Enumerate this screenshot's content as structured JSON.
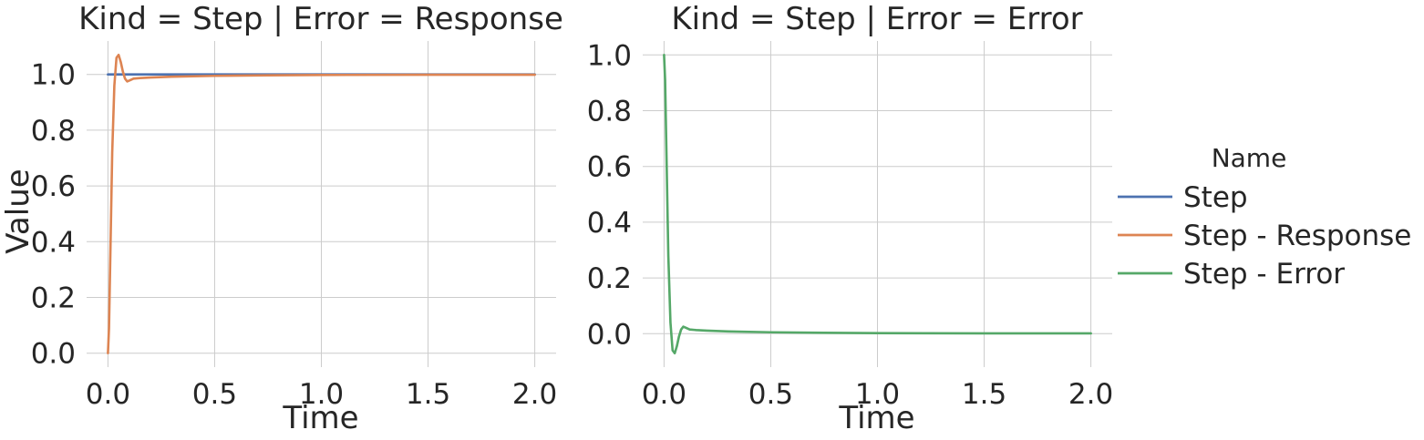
{
  "chart_data": [
    {
      "type": "line",
      "title": "Kind = Step | Error = Response",
      "xlabel": "Time",
      "ylabel": "Value",
      "xlim": [
        -0.1,
        2.1
      ],
      "ylim": [
        -0.05,
        1.12
      ],
      "xticks": [
        "0.0",
        "0.5",
        "1.0",
        "1.5",
        "2.0"
      ],
      "yticks": [
        "0.0",
        "0.2",
        "0.4",
        "0.6",
        "0.8",
        "1.0"
      ],
      "grid": true,
      "series": [
        {
          "name": "Step",
          "color": "#4c72b0",
          "x": [
            0,
            2.0
          ],
          "y": [
            1.0,
            1.0
          ]
        },
        {
          "name": "Step - Response",
          "color": "#dd8452",
          "x": [
            0,
            0.005,
            0.01,
            0.02,
            0.03,
            0.04,
            0.05,
            0.06,
            0.07,
            0.08,
            0.09,
            0.1,
            0.12,
            0.15,
            0.2,
            0.3,
            0.5,
            0.75,
            1.0,
            1.5,
            2.0
          ],
          "y": [
            0.0,
            0.09,
            0.3,
            0.72,
            0.96,
            1.06,
            1.07,
            1.045,
            1.01,
            0.985,
            0.975,
            0.978,
            0.985,
            0.987,
            0.989,
            0.992,
            0.995,
            0.997,
            0.998,
            0.999,
            0.999
          ]
        }
      ]
    },
    {
      "type": "line",
      "title": "Kind = Step | Error = Error",
      "xlabel": "Time",
      "ylabel": "",
      "xlim": [
        -0.1,
        2.1
      ],
      "ylim": [
        -0.12,
        1.05
      ],
      "xticks": [
        "0.0",
        "0.5",
        "1.0",
        "1.5",
        "2.0"
      ],
      "yticks": [
        "0.0",
        "0.2",
        "0.4",
        "0.6",
        "0.8",
        "1.0"
      ],
      "grid": true,
      "series": [
        {
          "name": "Step - Error",
          "color": "#55a868",
          "x": [
            0,
            0.005,
            0.01,
            0.02,
            0.03,
            0.04,
            0.05,
            0.06,
            0.07,
            0.08,
            0.09,
            0.1,
            0.12,
            0.15,
            0.2,
            0.3,
            0.5,
            0.75,
            1.0,
            1.5,
            2.0
          ],
          "y": [
            1.0,
            0.91,
            0.7,
            0.28,
            0.04,
            -0.06,
            -0.07,
            -0.045,
            -0.01,
            0.015,
            0.025,
            0.022,
            0.015,
            0.013,
            0.011,
            0.008,
            0.005,
            0.003,
            0.002,
            0.001,
            0.001
          ]
        }
      ]
    }
  ],
  "legend": {
    "title": "Name",
    "placement": "right",
    "items": [
      {
        "label": "Step",
        "color": "#4c72b0"
      },
      {
        "label": "Step - Response",
        "color": "#dd8452"
      },
      {
        "label": "Step - Error",
        "color": "#55a868"
      }
    ]
  }
}
